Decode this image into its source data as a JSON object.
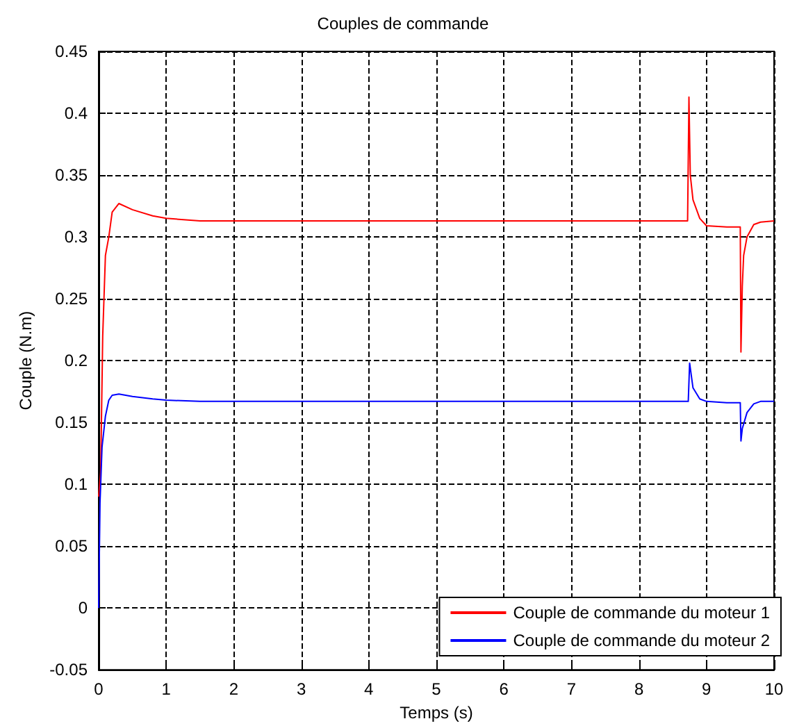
{
  "chart_data": {
    "type": "line",
    "title": "Couples de commande",
    "xlabel": "Temps (s)",
    "ylabel": "Couple (N.m)",
    "xlim": [
      0,
      10
    ],
    "xticks": [
      0,
      1,
      2,
      3,
      4,
      5,
      6,
      7,
      8,
      9,
      10
    ],
    "ylim": [
      -0.05,
      0.45
    ],
    "yticks": [
      -0.05,
      0,
      0.05,
      0.1,
      0.15,
      0.2,
      0.25,
      0.3,
      0.35,
      0.4,
      0.45
    ],
    "grid": true,
    "legend": "bottom right",
    "marker": "none",
    "line_style": "solid",
    "series": [
      {
        "name": "Couple de commande du moteur 1",
        "color": "#ff0000",
        "x": [
          0,
          0.03,
          0.06,
          0.1,
          0.15,
          0.2,
          0.3,
          0.5,
          0.8,
          1,
          1.5,
          3,
          6,
          8.72,
          8.74,
          8.76,
          8.8,
          8.9,
          9,
          9.3,
          9.5,
          9.51,
          9.53,
          9.55,
          9.6,
          9.7,
          9.8,
          10
        ],
        "values": [
          0.09,
          0.11,
          0.22,
          0.285,
          0.3,
          0.32,
          0.327,
          0.322,
          0.317,
          0.315,
          0.313,
          0.313,
          0.313,
          0.313,
          0.413,
          0.35,
          0.33,
          0.315,
          0.309,
          0.308,
          0.308,
          0.207,
          0.26,
          0.285,
          0.3,
          0.31,
          0.312,
          0.313
        ]
      },
      {
        "name": "Couple de commande du moteur 2",
        "color": "#0000ff",
        "x": [
          0,
          0.02,
          0.05,
          0.1,
          0.15,
          0.2,
          0.3,
          0.5,
          0.8,
          1,
          1.5,
          3,
          6,
          8.73,
          8.75,
          8.8,
          8.9,
          9,
          9.3,
          9.5,
          9.51,
          9.53,
          9.6,
          9.7,
          9.8,
          10
        ],
        "values": [
          0,
          0.085,
          0.13,
          0.155,
          0.168,
          0.172,
          0.173,
          0.171,
          0.169,
          0.168,
          0.167,
          0.167,
          0.167,
          0.167,
          0.198,
          0.178,
          0.169,
          0.167,
          0.166,
          0.166,
          0.135,
          0.145,
          0.158,
          0.165,
          0.167,
          0.167
        ]
      }
    ]
  }
}
